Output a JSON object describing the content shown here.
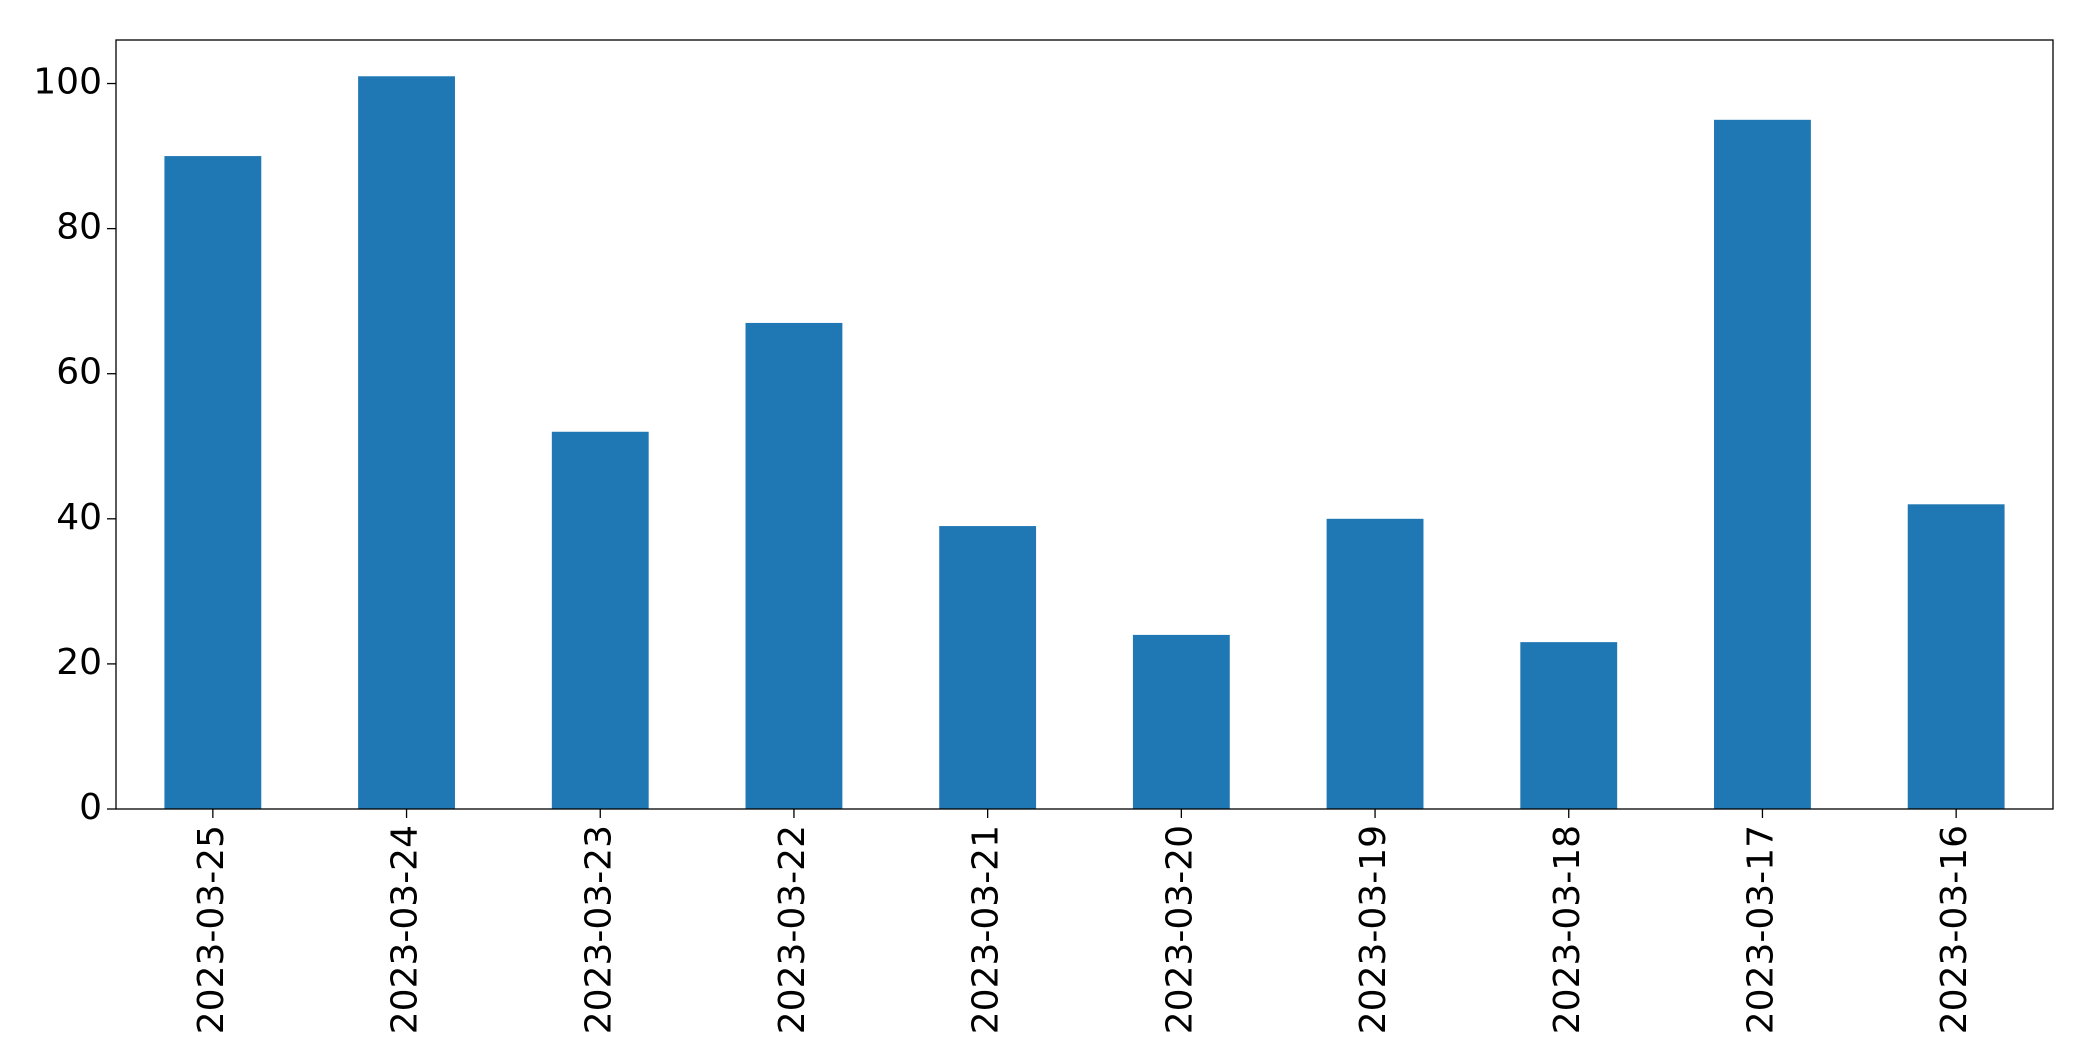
{
  "chart_data": {
    "type": "bar",
    "categories": [
      "2023-03-25",
      "2023-03-24",
      "2023-03-23",
      "2023-03-22",
      "2023-03-21",
      "2023-03-20",
      "2023-03-19",
      "2023-03-18",
      "2023-03-17",
      "2023-03-16"
    ],
    "values": [
      90,
      101,
      52,
      67,
      39,
      24,
      40,
      23,
      95,
      42
    ],
    "color": "#1f77b4",
    "ylim": [
      0,
      106
    ],
    "yticks": [
      0,
      20,
      40,
      60,
      80,
      100
    ],
    "grid": false
  }
}
